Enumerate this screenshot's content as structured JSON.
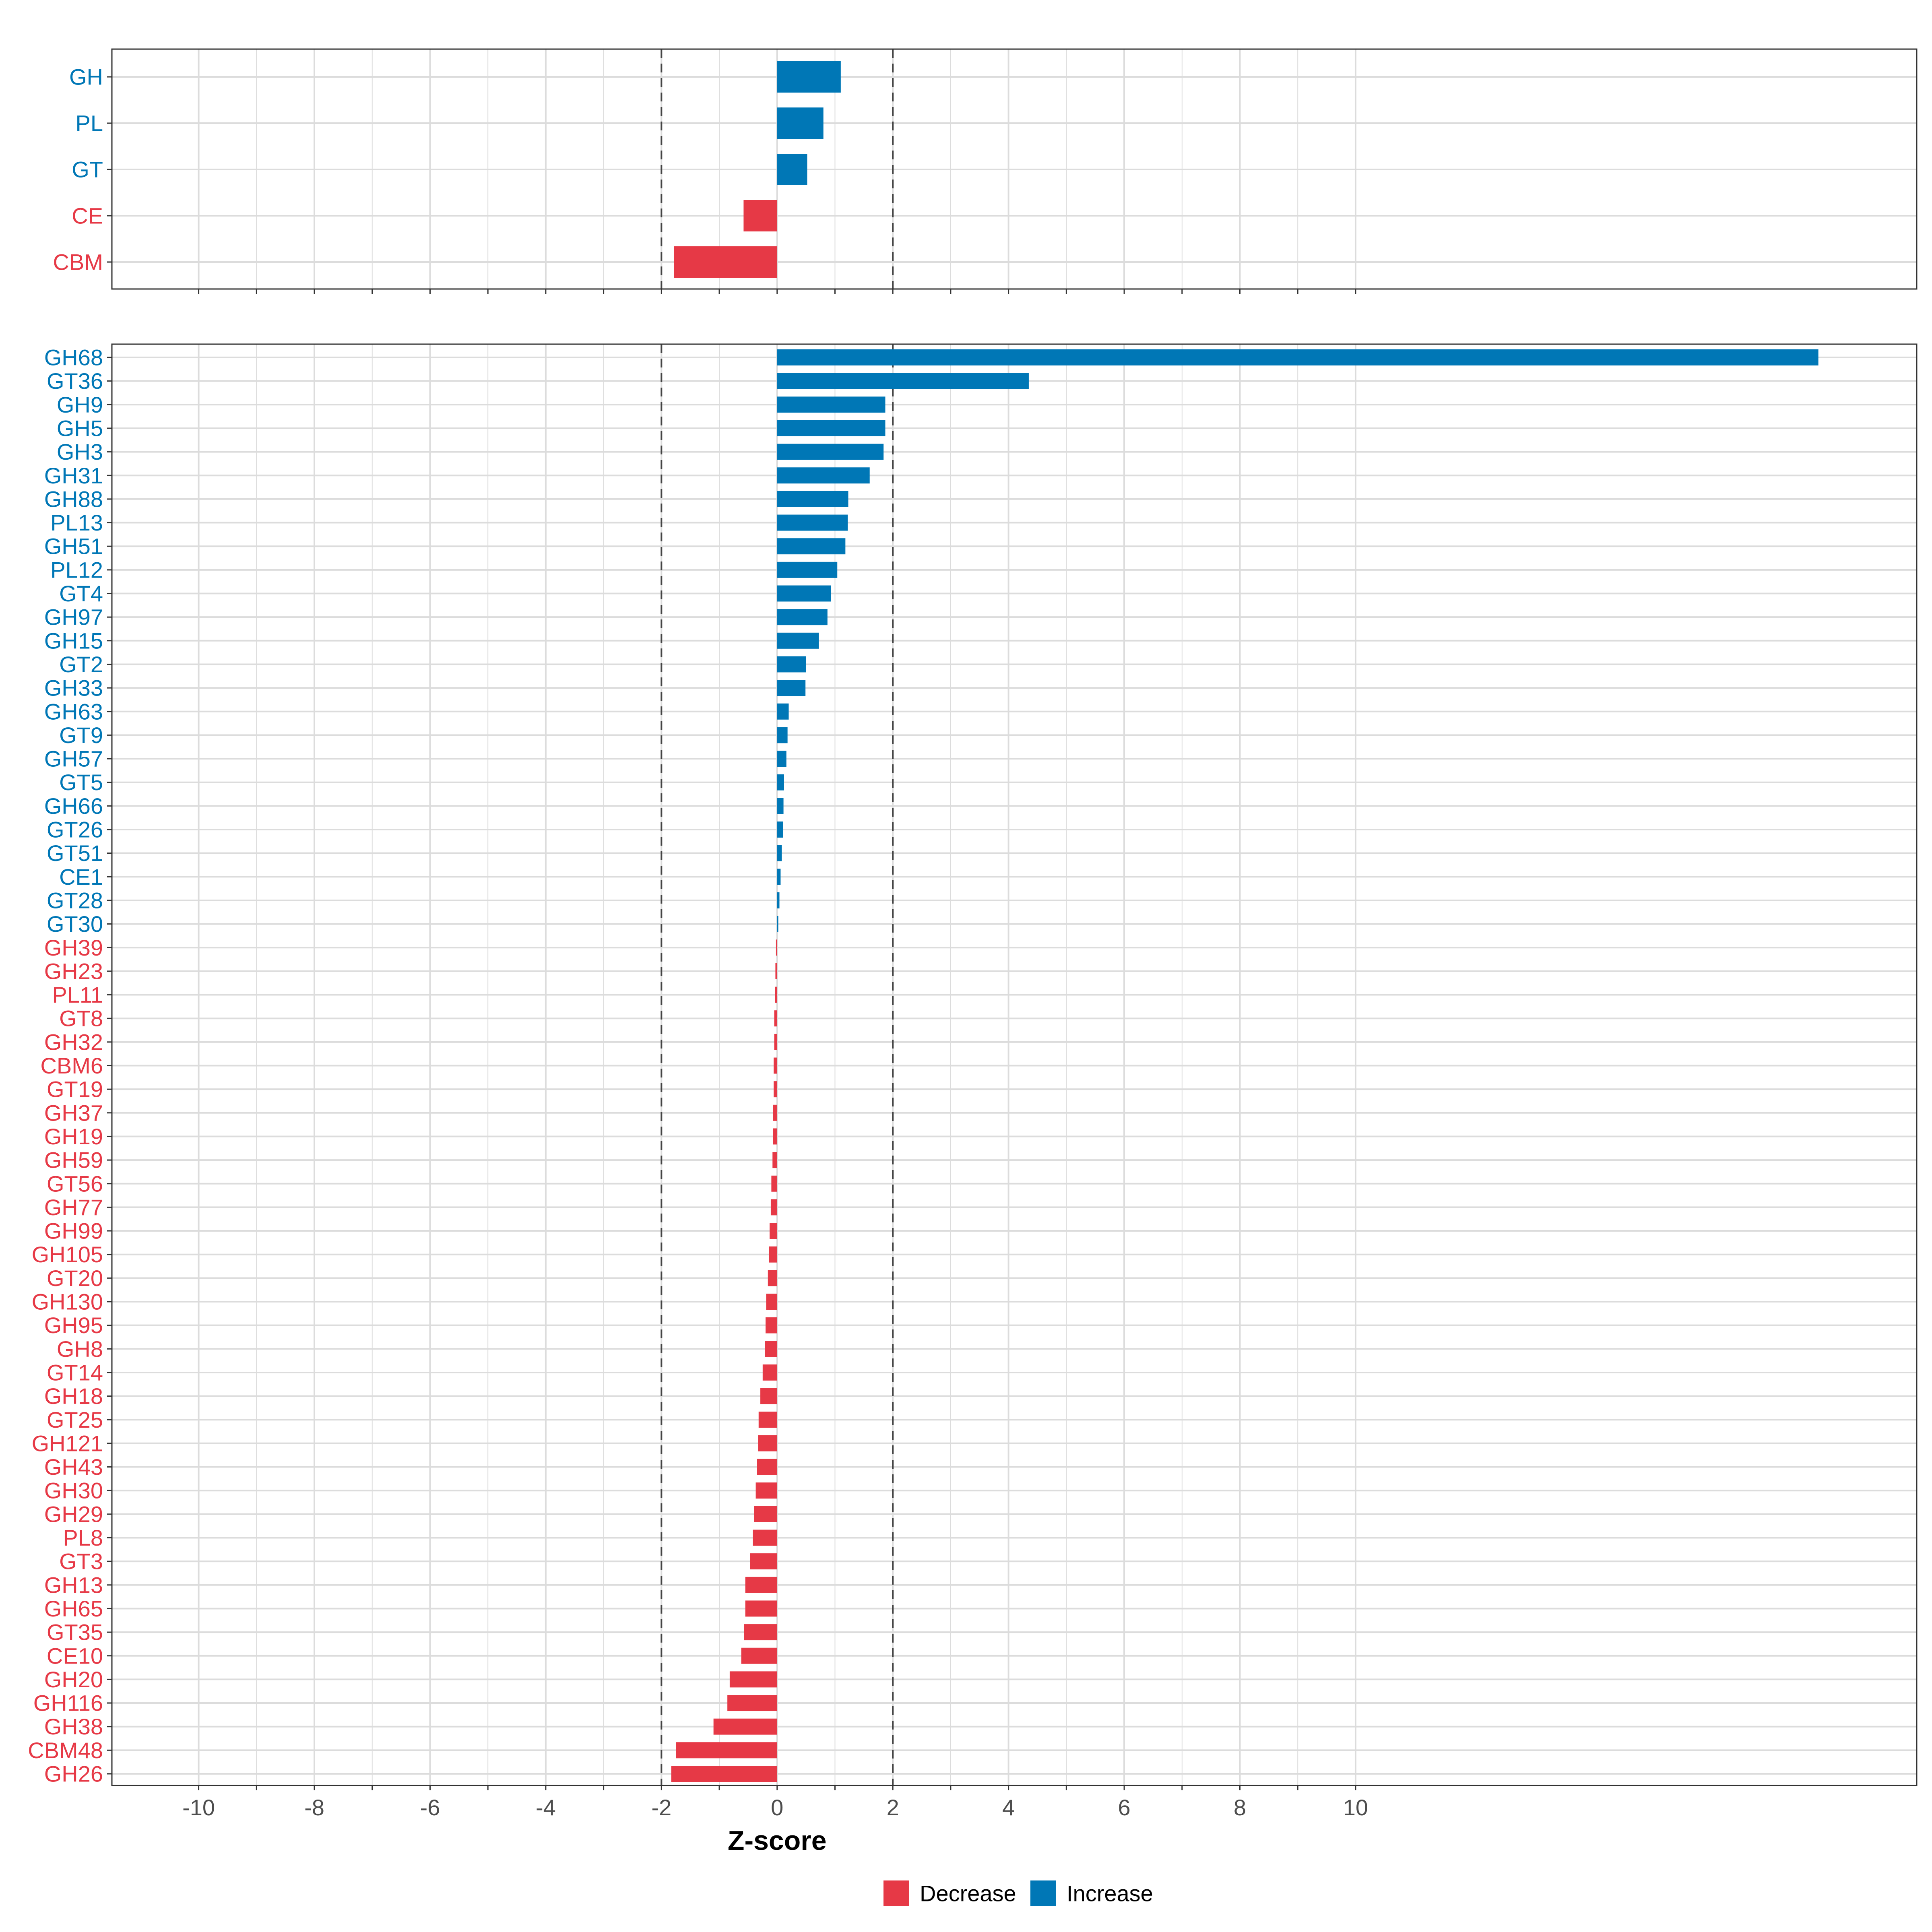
{
  "colors": {
    "decrease": "#E63946",
    "increase": "#0077B6"
  },
  "chart_data": {
    "type": "bar",
    "orientation": "horizontal",
    "xlabel": "Z-score",
    "xlim": [
      -11.5,
      19.7
    ],
    "xticks": [
      -10,
      -8,
      -6,
      -4,
      -2,
      0,
      2,
      4,
      6,
      8,
      10
    ],
    "reference_lines": [
      -2,
      2
    ],
    "grid": true,
    "legend": {
      "position": "bottom",
      "entries": [
        {
          "key": "decrease",
          "label": "Decrease"
        },
        {
          "key": "increase",
          "label": "Increase"
        }
      ]
    },
    "panels": [
      {
        "name": "top",
        "categories": [
          "GH",
          "PL",
          "GT",
          "CE",
          "CBM"
        ],
        "values": [
          1.1,
          0.8,
          0.52,
          -0.58,
          -1.78
        ]
      },
      {
        "name": "bottom",
        "categories": [
          "GH68",
          "GT36",
          "GH9",
          "GH5",
          "GH3",
          "GH31",
          "GH88",
          "PL13",
          "GH51",
          "PL12",
          "GT4",
          "GH97",
          "GH15",
          "GT2",
          "GH33",
          "GH63",
          "GT9",
          "GH57",
          "GT5",
          "GH66",
          "GT26",
          "GT51",
          "CE1",
          "GT28",
          "GT30",
          "GH39",
          "GH23",
          "PL11",
          "GT8",
          "GH32",
          "CBM6",
          "GT19",
          "GH37",
          "GH19",
          "GH59",
          "GT56",
          "GH77",
          "GH99",
          "GH105",
          "GT20",
          "GH130",
          "GH95",
          "GH8",
          "GT14",
          "GH18",
          "GT25",
          "GH121",
          "GH43",
          "GH30",
          "GH29",
          "PL8",
          "GT3",
          "GH13",
          "GH65",
          "GT35",
          "CE10",
          "GH20",
          "GH116",
          "GH38",
          "CBM48",
          "GH26"
        ],
        "values": [
          18.0,
          4.35,
          1.87,
          1.87,
          1.84,
          1.6,
          1.23,
          1.22,
          1.18,
          1.04,
          0.93,
          0.87,
          0.72,
          0.5,
          0.49,
          0.2,
          0.18,
          0.16,
          0.12,
          0.11,
          0.1,
          0.08,
          0.06,
          0.04,
          0.02,
          -0.02,
          -0.03,
          -0.04,
          -0.05,
          -0.05,
          -0.06,
          -0.06,
          -0.07,
          -0.07,
          -0.08,
          -0.1,
          -0.11,
          -0.13,
          -0.14,
          -0.16,
          -0.19,
          -0.2,
          -0.21,
          -0.25,
          -0.29,
          -0.32,
          -0.33,
          -0.35,
          -0.37,
          -0.4,
          -0.42,
          -0.47,
          -0.55,
          -0.55,
          -0.57,
          -0.62,
          -0.82,
          -0.86,
          -1.1,
          -1.75,
          -1.83
        ]
      }
    ]
  }
}
